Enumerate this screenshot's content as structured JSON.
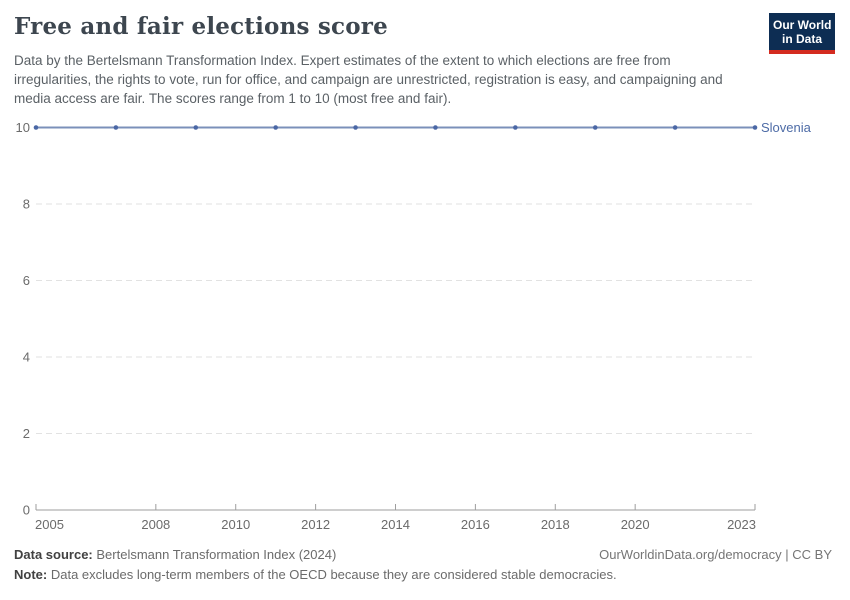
{
  "header": {
    "title": "Free and fair elections score",
    "subtitle": "Data by the Bertelsmann Transformation Index. Expert estimates of the extent to which elections are free from irregularities, the rights to vote, run for office, and campaign are unrestricted, registration is easy, and campaigning and media access are fair. The scores range from 1 to 10 (most free and fair).",
    "logo": {
      "line1": "Our World",
      "line2": "in Data"
    }
  },
  "chart_data": {
    "type": "line",
    "title": "Free and fair elections score",
    "x": [
      2005,
      2007,
      2009,
      2011,
      2013,
      2015,
      2017,
      2019,
      2021,
      2023
    ],
    "series": [
      {
        "name": "Slovenia",
        "values": [
          10,
          10,
          10,
          10,
          10,
          10,
          10,
          10,
          10,
          10
        ],
        "line_color": "#7b90ba",
        "point_color": "#4a67a5",
        "label_color": "#4d6ba6"
      }
    ],
    "xlim": [
      2005,
      2023
    ],
    "ylim": [
      0,
      10
    ],
    "xticks": [
      2005,
      2008,
      2010,
      2012,
      2014,
      2016,
      2018,
      2020,
      2023
    ],
    "yticks": [
      0,
      2,
      4,
      6,
      8,
      10
    ],
    "grid": "horizontal-dashed",
    "legend_position": "end-of-line-label",
    "xlabel": "",
    "ylabel": ""
  },
  "colors": {
    "grid": "#e2e2e2",
    "axis": "#9e9e9e",
    "tick_label": "#6b6b6b",
    "logo_navy": "#0d2d53",
    "logo_red": "#d42b20"
  },
  "footer": {
    "source_label": "Data source:",
    "source_value": "Bertelsmann Transformation Index (2024)",
    "note_label": "Note:",
    "note_value": "Data excludes long-term members of the OECD because they are considered stable democracies.",
    "link": "OurWorldinData.org/democracy | CC BY"
  }
}
